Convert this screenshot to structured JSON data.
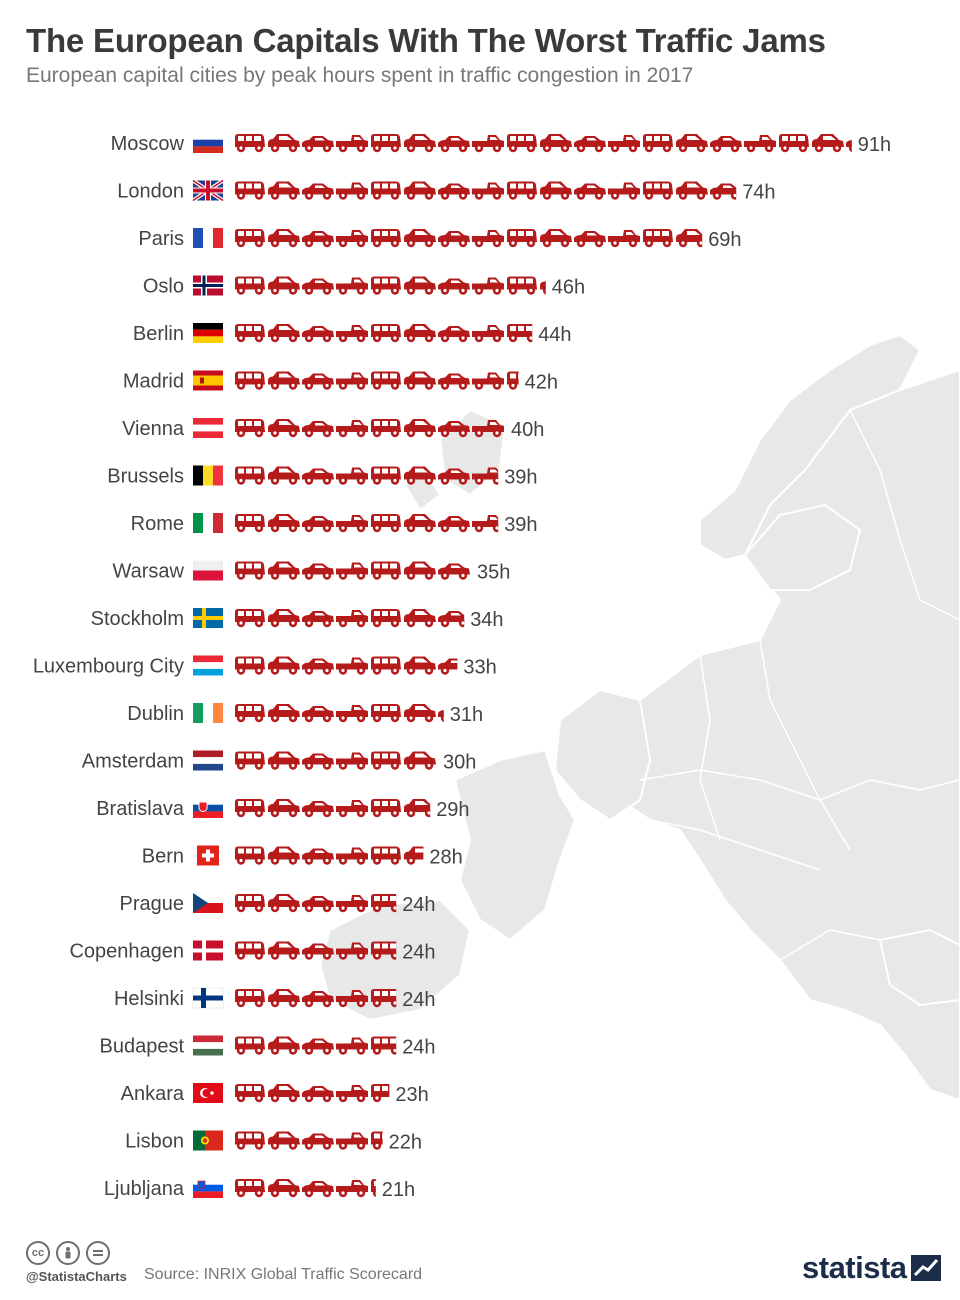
{
  "header": {
    "title": "The European Capitals With The Worst Traffic Jams",
    "subtitle": "European capital cities by peak hours spent in traffic congestion in 2017"
  },
  "chart_data": {
    "type": "bar",
    "value_suffix": "h",
    "categories": [
      "Moscow",
      "London",
      "Paris",
      "Oslo",
      "Berlin",
      "Madrid",
      "Vienna",
      "Brussels",
      "Rome",
      "Warsaw",
      "Stockholm",
      "Luxembourg City",
      "Dublin",
      "Amsterdam",
      "Bratislava",
      "Bern",
      "Prague",
      "Copenhagen",
      "Helsinki",
      "Budapest",
      "Ankara",
      "Lisbon",
      "Ljubljana"
    ],
    "values": [
      91,
      74,
      69,
      46,
      44,
      42,
      40,
      39,
      39,
      35,
      34,
      33,
      31,
      30,
      29,
      28,
      24,
      24,
      24,
      24,
      23,
      22,
      21
    ],
    "flags": [
      "ru",
      "gb",
      "fr",
      "no",
      "de",
      "es",
      "at",
      "be",
      "it",
      "pl",
      "se",
      "lu",
      "ie",
      "nl",
      "sk",
      "ch",
      "cz",
      "dk",
      "fi",
      "hu",
      "tr",
      "pt",
      "si"
    ],
    "bar_color": "#b51b1b",
    "bar_icon": "car-icon"
  },
  "footer": {
    "handle": "@StatistaCharts",
    "source": "Source: INRIX Global Traffic Scorecard",
    "brand": "statista",
    "license_icons": [
      "creative-commons-icon",
      "attribution-icon",
      "no-derivatives-icon"
    ]
  }
}
